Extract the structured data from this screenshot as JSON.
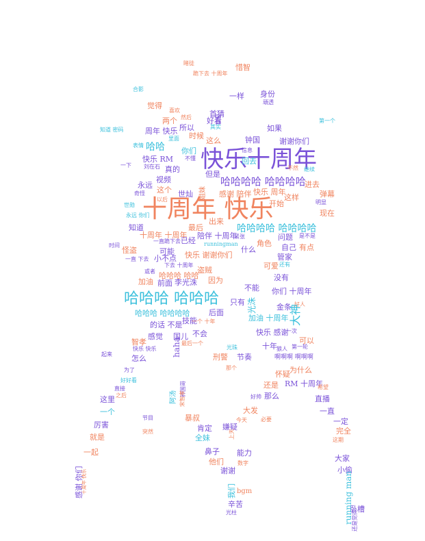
{
  "palette": {
    "salmon": "#f0845f",
    "purple": "#7a52d8",
    "cyan": "#3cc0dc"
  },
  "words": [
    {
      "text": "十周年 快乐",
      "color": "#f0845f"
    },
    {
      "text": "快乐十周年",
      "color": "#7a52d8"
    },
    {
      "text": "哈哈哈 哈哈哈",
      "color": "#3cc0dc"
    },
    {
      "text": "哈哈哈哈 哈哈哈哈",
      "color": "#7a52d8"
    },
    {
      "text": "哈哈哈哈 哈哈哈哈",
      "color": "#3cc0dc"
    },
    {
      "text": "哈哈哈 哈哈哈哈",
      "color": "#3cc0dc"
    },
    {
      "text": "惜智",
      "color": "#f0845f"
    },
    {
      "text": "睹徒",
      "color": "#f0845f"
    },
    {
      "text": "跪下去 十周年",
      "color": "#f0845f"
    },
    {
      "text": "合影",
      "color": "#3cc0dc"
    },
    {
      "text": "一样",
      "color": "#7a52d8"
    },
    {
      "text": "身份",
      "color": "#7a52d8"
    },
    {
      "text": "游戏",
      "color": "#7a52d8"
    },
    {
      "text": "頑透",
      "color": "#7a52d8"
    },
    {
      "text": "觉得",
      "color": "#f0845f"
    },
    {
      "text": "首猜",
      "color": "#7a52d8"
    },
    {
      "text": "喜欢",
      "color": "#f0845f"
    },
    {
      "text": "两个",
      "color": "#f0845f"
    },
    {
      "text": "然后",
      "color": "#f0845f"
    },
    {
      "text": "好看",
      "color": "#7a52d8"
    },
    {
      "text": "第一个",
      "color": "#3cc0dc"
    },
    {
      "text": "知道 密码",
      "color": "#3cc0dc"
    },
    {
      "text": "周年 快乐",
      "color": "#7a52d8"
    },
    {
      "text": "所以",
      "color": "#7a52d8"
    },
    {
      "text": "其实",
      "color": "#3cc0dc"
    },
    {
      "text": "如果",
      "color": "#7a52d8"
    },
    {
      "text": "时候",
      "color": "#f0845f"
    },
    {
      "text": "钟国",
      "color": "#7a52d8"
    },
    {
      "text": "谢谢你们",
      "color": "#7a52d8"
    },
    {
      "text": "里面",
      "color": "#3cc0dc"
    },
    {
      "text": "这么",
      "color": "#f0845f"
    },
    {
      "text": "表情",
      "color": "#3cc0dc"
    },
    {
      "text": "哈哈",
      "color": "#3cc0dc"
    },
    {
      "text": "你们",
      "color": "#3cc0dc"
    },
    {
      "text": "信息",
      "color": "#7a52d8"
    },
    {
      "text": "不懂",
      "color": "#7a52d8"
    },
    {
      "text": "快乐 RM",
      "color": "#7a52d8"
    },
    {
      "text": "回去",
      "color": "#3cc0dc"
    },
    {
      "text": "一下",
      "color": "#7a52d8"
    },
    {
      "text": "刘在石",
      "color": "#7a52d8"
    },
    {
      "text": "真的",
      "color": "#7a52d8"
    },
    {
      "text": "不然",
      "color": "#f0845f"
    },
    {
      "text": "继续",
      "color": "#3cc0dc"
    },
    {
      "text": "视频",
      "color": "#7a52d8"
    },
    {
      "text": "但是",
      "color": "#7a52d8"
    },
    {
      "text": "永远",
      "color": "#7a52d8"
    },
    {
      "text": "进去",
      "color": "#f0845f"
    },
    {
      "text": "这个",
      "color": "#f0845f"
    },
    {
      "text": "奇怪",
      "color": "#7a52d8"
    },
    {
      "text": "以后",
      "color": "#f0845f"
    },
    {
      "text": "世灿",
      "color": "#7a52d8"
    },
    {
      "text": "感谢 陪伴",
      "color": "#f0845f"
    },
    {
      "text": "快乐 周年",
      "color": "#f0845f"
    },
    {
      "text": "这样",
      "color": "#f0845f"
    },
    {
      "text": "弹幕",
      "color": "#f0845f"
    },
    {
      "text": "开始",
      "color": "#f0845f"
    },
    {
      "text": "世勋",
      "color": "#3cc0dc"
    },
    {
      "text": "永远 你们",
      "color": "#3cc0dc"
    },
    {
      "text": "明显",
      "color": "#7a52d8"
    },
    {
      "text": "出来",
      "color": "#f0845f"
    },
    {
      "text": "现在",
      "color": "#f0845f"
    },
    {
      "text": "知道",
      "color": "#7a52d8"
    },
    {
      "text": "最后",
      "color": "#f0845f"
    },
    {
      "text": "十周年 十周年",
      "color": "#f0845f"
    },
    {
      "text": "陪伴 十周年",
      "color": "#7a52d8"
    },
    {
      "text": "问题",
      "color": "#7a52d8"
    },
    {
      "text": "是不是",
      "color": "#7a52d8"
    },
    {
      "text": "一直跪下去",
      "color": "#7a52d8"
    },
    {
      "text": "已经",
      "color": "#7a52d8"
    },
    {
      "text": "runningman",
      "color": "#3cc0dc"
    },
    {
      "text": "紧张",
      "color": "#7a52d8"
    },
    {
      "text": "角色",
      "color": "#f0845f"
    },
    {
      "text": "时间",
      "color": "#7a52d8"
    },
    {
      "text": "怪盗",
      "color": "#f0845f"
    },
    {
      "text": "可能",
      "color": "#7a52d8"
    },
    {
      "text": "什么",
      "color": "#7a52d8"
    },
    {
      "text": "自己",
      "color": "#7a52d8"
    },
    {
      "text": "有点",
      "color": "#f0845f"
    },
    {
      "text": "一直 下去",
      "color": "#7a52d8"
    },
    {
      "text": "小不点",
      "color": "#7a52d8"
    },
    {
      "text": "快乐 谢谢你们",
      "color": "#f0845f"
    },
    {
      "text": "管家",
      "color": "#7a52d8"
    },
    {
      "text": "下去 十周年",
      "color": "#7a52d8"
    },
    {
      "text": "可爱",
      "color": "#f0845f"
    },
    {
      "text": "还有",
      "color": "#3cc0dc"
    },
    {
      "text": "或者",
      "color": "#7a52d8"
    },
    {
      "text": "哈哈哈 哈哈",
      "color": "#f0845f"
    },
    {
      "text": "盗贼",
      "color": "#f0845f"
    },
    {
      "text": "加油",
      "color": "#f0845f"
    },
    {
      "text": "前面",
      "color": "#7a52d8"
    },
    {
      "text": "李光洙",
      "color": "#7a52d8"
    },
    {
      "text": "因为",
      "color": "#f0845f"
    },
    {
      "text": "没有",
      "color": "#7a52d8"
    },
    {
      "text": "不能",
      "color": "#7a52d8"
    },
    {
      "text": "你们 十周年",
      "color": "#7a52d8"
    },
    {
      "text": "只有",
      "color": "#7a52d8"
    },
    {
      "text": "金条",
      "color": "#7a52d8"
    },
    {
      "text": "好人",
      "color": "#f0845f"
    },
    {
      "text": "技能",
      "color": "#7a52d8"
    },
    {
      "text": "后面",
      "color": "#7a52d8"
    },
    {
      "text": "加油 十周年",
      "color": "#3cc0dc"
    },
    {
      "text": "的话 不是",
      "color": "#7a52d8"
    },
    {
      "text": "一个 十年",
      "color": "#f0845f"
    },
    {
      "text": "一次",
      "color": "#7a52d8"
    },
    {
      "text": "感觉",
      "color": "#7a52d8"
    },
    {
      "text": "国儿",
      "color": "#7a52d8"
    },
    {
      "text": "不会",
      "color": "#7a52d8"
    },
    {
      "text": "快乐 感谢",
      "color": "#7a52d8"
    },
    {
      "text": "可以",
      "color": "#f0845f"
    },
    {
      "text": "智孝",
      "color": "#f0845f"
    },
    {
      "text": "最后一个",
      "color": "#f0845f"
    },
    {
      "text": "十年",
      "color": "#7a52d8"
    },
    {
      "text": "狼人",
      "color": "#7a52d8"
    },
    {
      "text": "第一轮",
      "color": "#7a52d8"
    },
    {
      "text": "快乐 快乐",
      "color": "#7a52d8"
    },
    {
      "text": "光珠",
      "color": "#3cc0dc"
    },
    {
      "text": "起来",
      "color": "#7a52d8"
    },
    {
      "text": "怎么",
      "color": "#7a52d8"
    },
    {
      "text": "刑警",
      "color": "#f0845f"
    },
    {
      "text": "节奏",
      "color": "#7a52d8"
    },
    {
      "text": "啊啊啊 啊啊啊",
      "color": "#7a52d8"
    },
    {
      "text": "那个",
      "color": "#f0845f"
    },
    {
      "text": "为了",
      "color": "#7a52d8"
    },
    {
      "text": "为什么",
      "color": "#f0845f"
    },
    {
      "text": "怀疑",
      "color": "#f0845f"
    },
    {
      "text": "好好看",
      "color": "#3cc0dc"
    },
    {
      "text": "还是",
      "color": "#f0845f"
    },
    {
      "text": "RM 十周年",
      "color": "#7a52d8"
    },
    {
      "text": "直接",
      "color": "#7a52d8"
    },
    {
      "text": "之后",
      "color": "#f0845f"
    },
    {
      "text": "好帅",
      "color": "#7a52d8"
    },
    {
      "text": "那么",
      "color": "#7a52d8"
    },
    {
      "text": "希望",
      "color": "#f0845f"
    },
    {
      "text": "直播",
      "color": "#7a52d8"
    },
    {
      "text": "这里",
      "color": "#7a52d8"
    },
    {
      "text": "大发",
      "color": "#f0845f"
    },
    {
      "text": "一个",
      "color": "#3cc0dc"
    },
    {
      "text": "一直",
      "color": "#7a52d8"
    },
    {
      "text": "节目",
      "color": "#7a52d8"
    },
    {
      "text": "暴叔",
      "color": "#f0845f"
    },
    {
      "text": "今天",
      "color": "#f0845f"
    },
    {
      "text": "必要",
      "color": "#f0845f"
    },
    {
      "text": "厉害",
      "color": "#7a52d8"
    },
    {
      "text": "肯定",
      "color": "#7a52d8"
    },
    {
      "text": "嫌疑",
      "color": "#7a52d8"
    },
    {
      "text": "一定",
      "color": "#7a52d8"
    },
    {
      "text": "完全",
      "color": "#f0845f"
    },
    {
      "text": "突然",
      "color": "#f0845f"
    },
    {
      "text": "全妹",
      "color": "#3cc0dc"
    },
    {
      "text": "就是",
      "color": "#f0845f"
    },
    {
      "text": "这期",
      "color": "#f0845f"
    },
    {
      "text": "一起",
      "color": "#f0845f"
    },
    {
      "text": "鼻子",
      "color": "#7a52d8"
    },
    {
      "text": "能力",
      "color": "#7a52d8"
    },
    {
      "text": "他们",
      "color": "#f0845f"
    },
    {
      "text": "数字",
      "color": "#f0845f"
    },
    {
      "text": "大家",
      "color": "#7a52d8"
    },
    {
      "text": "谢谢",
      "color": "#7a52d8"
    },
    {
      "text": "小偷",
      "color": "#7a52d8"
    },
    {
      "text": "bgm",
      "color": "#f0845f"
    },
    {
      "text": "辛苦",
      "color": "#7a52d8"
    },
    {
      "text": "卧槽",
      "color": "#7a52d8"
    },
    {
      "text": "光柱",
      "color": "#7a52d8"
    },
    {
      "text": "感谢 你们",
      "color": "#7a52d8"
    },
    {
      "text": "十周年 快乐",
      "color": "#f0845f"
    },
    {
      "text": "haha",
      "color": "#7a52d8"
    },
    {
      "text": "光洙",
      "color": "#3cc0dc"
    },
    {
      "text": "大神",
      "color": "#3cc0dc"
    },
    {
      "text": "姐妹",
      "color": "#f0845f"
    },
    {
      "text": "钟国哥",
      "color": "#7a52d8"
    },
    {
      "text": "我们",
      "color": "#3cc0dc"
    },
    {
      "text": "running man",
      "color": "#3cc0dc"
    },
    {
      "text": "宋智孝",
      "color": "#f0845f"
    },
    {
      "text": "上天",
      "color": "#f0845f"
    },
    {
      "text": "阿汤",
      "color": "#3cc0dc"
    },
    {
      "text": "还是觉得",
      "color": "#7a52d8"
    }
  ]
}
